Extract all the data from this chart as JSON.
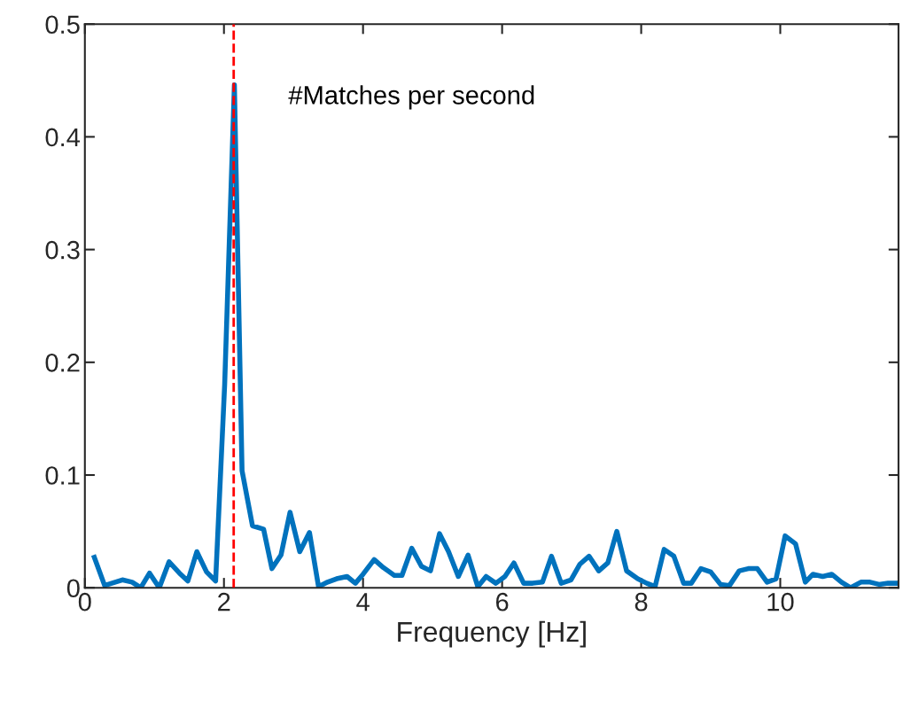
{
  "chart_data": {
    "type": "line",
    "xlabel": "Frequency [Hz]",
    "annotations": [
      "#Matches per second"
    ],
    "xlim": [
      0,
      11.7
    ],
    "ylim": [
      0,
      0.5
    ],
    "xticks": [
      0,
      2,
      4,
      6,
      8,
      10
    ],
    "yticks": [
      0,
      0.1,
      0.2,
      0.3,
      0.4,
      0.5
    ],
    "grid": false,
    "marker": "none",
    "line_style": "solid",
    "ref_lines": [
      {
        "axis": "x",
        "value": 2.14,
        "color": "#ff0000",
        "line_style": "dashed"
      }
    ],
    "series": [
      {
        "color": "#0072bd",
        "x": [
          0.136,
          0.284,
          0.539,
          0.679,
          0.803,
          0.93,
          1.07,
          1.21,
          1.36,
          1.48,
          1.61,
          1.75,
          1.88,
          2.01,
          2.15,
          2.26,
          2.41,
          2.57,
          2.69,
          2.82,
          2.95,
          3.09,
          3.23,
          3.36,
          3.49,
          3.62,
          3.77,
          3.89,
          4.0,
          4.16,
          4.29,
          4.45,
          4.56,
          4.7,
          4.84,
          4.97,
          5.1,
          5.23,
          5.37,
          5.51,
          5.65,
          5.77,
          5.91,
          6.04,
          6.17,
          6.31,
          6.44,
          6.58,
          6.71,
          6.85,
          6.99,
          7.12,
          7.25,
          7.39,
          7.52,
          7.65,
          7.79,
          7.95,
          8.08,
          8.2,
          8.33,
          8.47,
          8.61,
          8.72,
          8.86,
          9.0,
          9.14,
          9.27,
          9.41,
          9.54,
          9.67,
          9.81,
          9.94,
          10.07,
          10.22,
          10.36,
          10.47,
          10.61,
          10.74,
          10.88,
          11.01,
          11.16,
          11.29,
          11.42,
          11.55,
          11.69
        ],
        "values": [
          0.027,
          0.002,
          0.007,
          0.005,
          0.0,
          0.013,
          0.0,
          0.023,
          0.013,
          0.006,
          0.032,
          0.014,
          0.006,
          0.18,
          0.446,
          0.104,
          0.055,
          0.052,
          0.017,
          0.029,
          0.067,
          0.032,
          0.049,
          0.001,
          0.005,
          0.008,
          0.01,
          0.004,
          0.012,
          0.025,
          0.018,
          0.011,
          0.011,
          0.035,
          0.019,
          0.015,
          0.048,
          0.032,
          0.01,
          0.029,
          0.001,
          0.01,
          0.004,
          0.01,
          0.022,
          0.004,
          0.004,
          0.005,
          0.028,
          0.004,
          0.007,
          0.021,
          0.028,
          0.015,
          0.022,
          0.05,
          0.015,
          0.008,
          0.004,
          0.001,
          0.034,
          0.028,
          0.004,
          0.004,
          0.017,
          0.014,
          0.003,
          0.002,
          0.015,
          0.017,
          0.017,
          0.005,
          0.008,
          0.046,
          0.039,
          0.005,
          0.012,
          0.01,
          0.012,
          0.005,
          0.0,
          0.005,
          0.005,
          0.003,
          0.004,
          0.004
        ]
      }
    ]
  }
}
